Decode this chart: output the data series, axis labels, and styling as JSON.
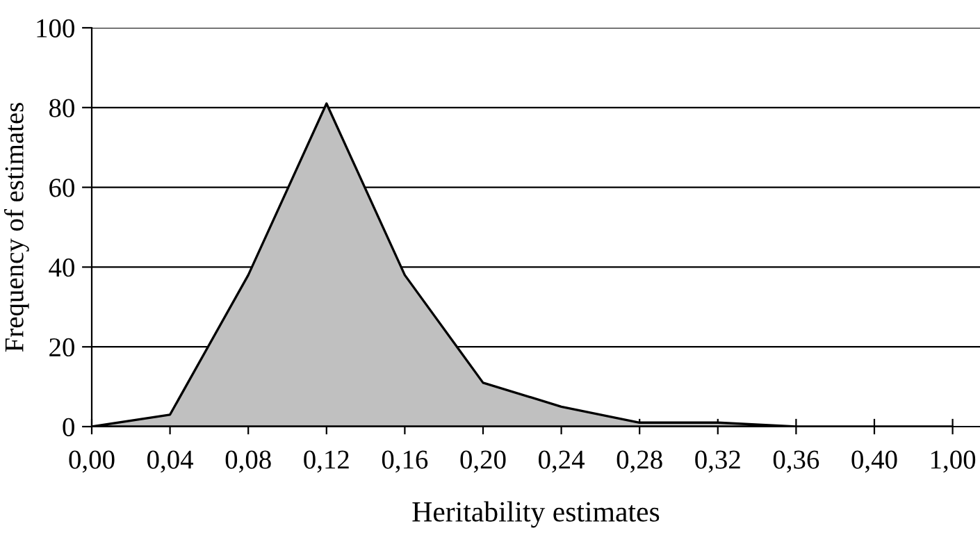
{
  "chart_data": {
    "type": "area",
    "xlabel": "Heritability estimates",
    "ylabel": "Frequency of estimates",
    "categories": [
      "0,00",
      "0,04",
      "0,08",
      "0,12",
      "0,16",
      "0,20",
      "0,24",
      "0,28",
      "0,32",
      "0,36",
      "0,40",
      "1,00"
    ],
    "series": [
      {
        "color": "#c0c0c0",
        "values": [
          0,
          3,
          38,
          81,
          38,
          11,
          5,
          1,
          1,
          0,
          0,
          0
        ]
      }
    ],
    "ylim": [
      0,
      100
    ],
    "yticks": [
      0,
      20,
      40,
      60,
      80,
      100
    ],
    "grid": "y",
    "legend": false
  }
}
